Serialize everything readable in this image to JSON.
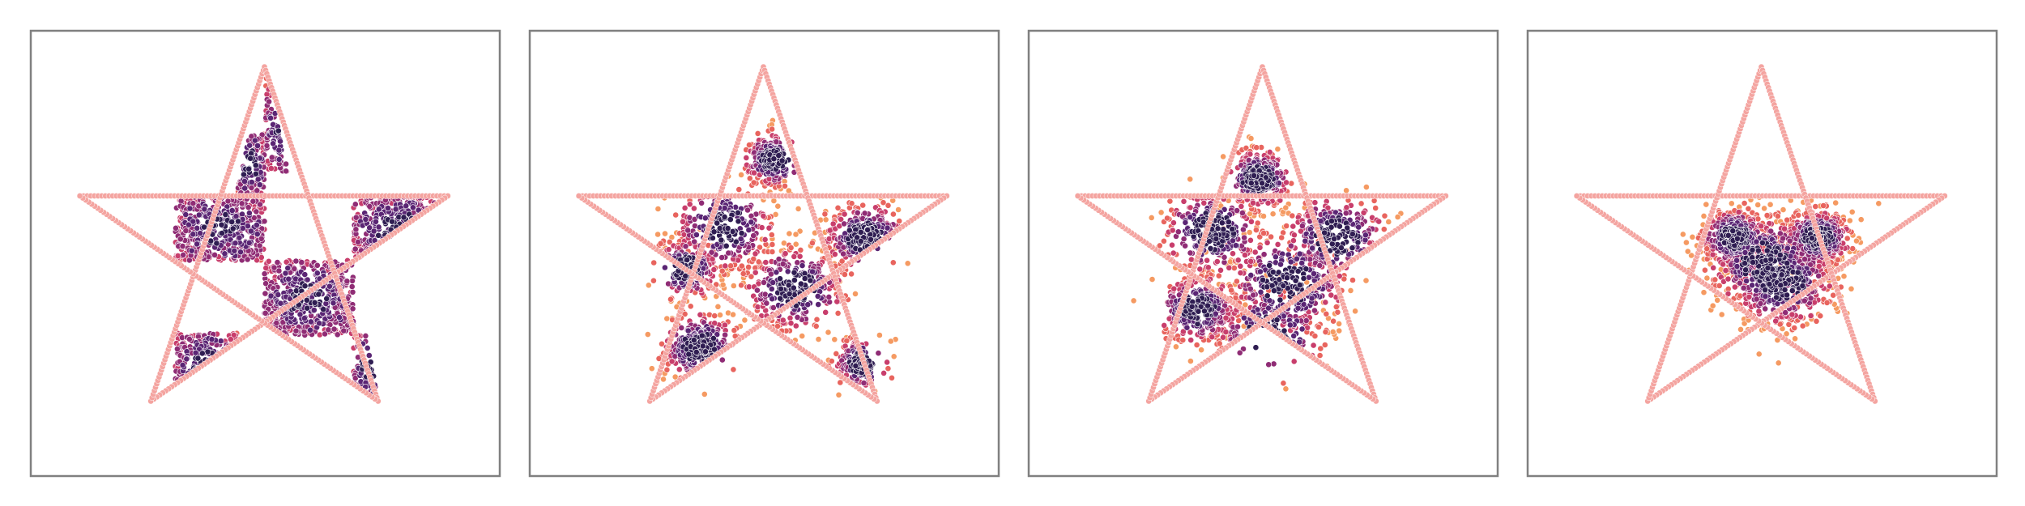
{
  "figure": {
    "outline_color": "#f4a4a0",
    "frame_color": "#808080",
    "palette": [
      "#f59a62",
      "#e8645e",
      "#c83e6c",
      "#8f2c75",
      "#5a2574",
      "#2f1d52"
    ]
  }
}
